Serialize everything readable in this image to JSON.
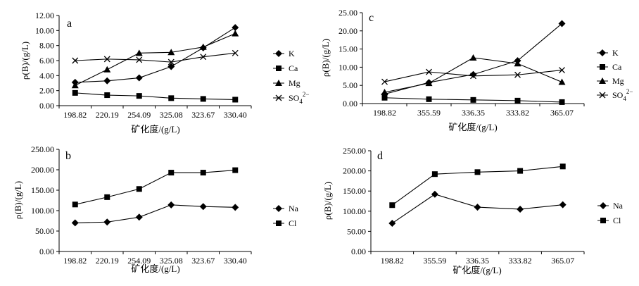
{
  "chart_data": [
    {
      "id": "a",
      "type": "line",
      "panel_label": "a",
      "categories": [
        "198.82",
        "220.19",
        "254.09",
        "325.08",
        "323.67",
        "330.40"
      ],
      "ylim": [
        0,
        12
      ],
      "yticks": [
        "0.00",
        "2.00",
        "4.00",
        "6.00",
        "8.00",
        "10.00",
        "12.00"
      ],
      "ylabel": "ρ(B)/(g/L)",
      "xlabel": "矿化度/(g/L)",
      "legend_position": "right",
      "series": [
        {
          "name": "K",
          "marker": "diamond",
          "values": [
            3.1,
            3.3,
            3.7,
            5.2,
            7.7,
            10.4
          ]
        },
        {
          "name": "Ca",
          "marker": "square",
          "values": [
            1.7,
            1.4,
            1.3,
            1.0,
            0.9,
            0.8
          ]
        },
        {
          "name": "Mg",
          "marker": "triangle",
          "values": [
            2.7,
            4.8,
            7.0,
            7.1,
            7.8,
            9.6
          ]
        },
        {
          "name": "SO4",
          "label_html": "SO<sub>4</sub><sup>2−</sup>",
          "marker": "x",
          "values": [
            6.0,
            6.2,
            6.1,
            5.8,
            6.5,
            7.0
          ]
        }
      ]
    },
    {
      "id": "c",
      "type": "line",
      "panel_label": "c",
      "categories": [
        "198.82",
        "355.59",
        "336.35",
        "333.82",
        "365.07"
      ],
      "ylim": [
        0,
        25
      ],
      "yticks": [
        "0.00",
        "5.00",
        "10.00",
        "15.00",
        "20.00",
        "25.00"
      ],
      "ylabel": "ρ(B)/(g/L)",
      "xlabel": "矿化度/(g/L)",
      "legend_position": "right",
      "series": [
        {
          "name": "K",
          "marker": "diamond",
          "values": [
            2.6,
            5.8,
            8.0,
            11.8,
            22.0
          ]
        },
        {
          "name": "Ca",
          "marker": "square",
          "values": [
            1.6,
            1.2,
            1.0,
            0.8,
            0.4
          ]
        },
        {
          "name": "Mg",
          "marker": "triangle",
          "values": [
            3.1,
            5.6,
            12.6,
            11.0,
            5.9
          ]
        },
        {
          "name": "SO4",
          "label_html": "SO<sub>4</sub><sup>2−</sup>",
          "marker": "x",
          "values": [
            6.0,
            8.7,
            7.6,
            7.9,
            9.2
          ]
        }
      ]
    },
    {
      "id": "b",
      "type": "line",
      "panel_label": "b",
      "categories": [
        "198.82",
        "220.19",
        "254.09",
        "325.08",
        "323.67",
        "330.40"
      ],
      "ylim": [
        0,
        250
      ],
      "yticks": [
        "0.00",
        "50.00",
        "100.00",
        "150.00",
        "200.00",
        "250.00"
      ],
      "ylabel": "ρ(B)/(g/L)",
      "xlabel": "矿化度/(g/L)",
      "legend_position": "right",
      "series": [
        {
          "name": "Na",
          "marker": "diamond",
          "values": [
            70,
            72,
            84,
            114,
            110,
            108
          ]
        },
        {
          "name": "Cl",
          "marker": "square",
          "values": [
            115,
            133,
            153,
            193,
            193,
            199
          ]
        }
      ]
    },
    {
      "id": "d",
      "type": "line",
      "panel_label": "d",
      "categories": [
        "198.82",
        "355.59",
        "336.35",
        "333.82",
        "365.07"
      ],
      "ylim": [
        0,
        250
      ],
      "yticks": [
        "0.00",
        "50.00",
        "100.00",
        "150.00",
        "200.00",
        "250.00"
      ],
      "ylabel": "ρ(B)/(g/L)",
      "xlabel": "矿化度/(g/L)",
      "legend_position": "right",
      "series": [
        {
          "name": "Na",
          "marker": "diamond",
          "values": [
            70,
            142,
            110,
            105,
            116
          ]
        },
        {
          "name": "Cl",
          "marker": "square",
          "values": [
            115,
            192,
            197,
            200,
            211
          ]
        }
      ]
    }
  ]
}
